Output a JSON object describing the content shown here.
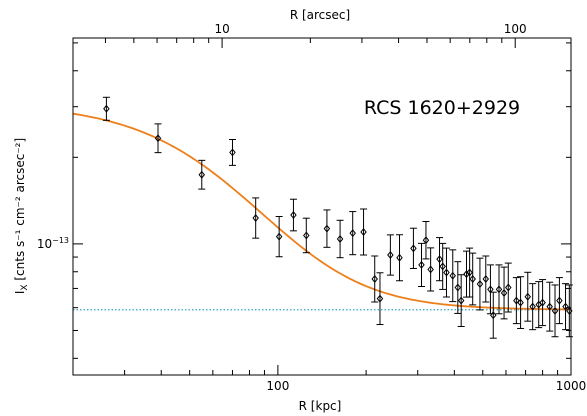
{
  "chart_data": {
    "type": "scatter",
    "annotation": "RCS 1620+2929",
    "xlabel": "R [kpc]",
    "x2label": "R [arcsec]",
    "ylabel_main": "I",
    "ylabel_sub": "X",
    "ylabel_rest": " [cnts s⁻¹ cm⁻² arcsec⁻²]",
    "x_scale": "log",
    "y_scale": "log",
    "xlim": [
      20,
      1000
    ],
    "ylim": [
      3.5e-14,
      5.2e-13
    ],
    "x2lim": [
      3.1,
      155
    ],
    "x_major_ticks": [
      100,
      1000
    ],
    "x_tick_labels": [
      "100",
      "1000"
    ],
    "x2_major_ticks": [
      10,
      100
    ],
    "x2_tick_labels": [
      "10",
      "100"
    ],
    "y_major_ticks": [
      1e-13
    ],
    "y_tick_label_base": "10",
    "y_tick_label_exp": "−13",
    "grid": false,
    "series": [
      {
        "kind": "points_with_errors",
        "x": [
          26,
          39,
          55,
          70,
          84,
          101,
          113,
          125,
          147,
          163,
          180,
          196,
          214,
          223,
          242,
          260,
          290,
          309,
          320,
          332,
          356,
          365,
          376,
          395,
          411,
          422,
          440,
          451,
          462,
          489,
          512,
          531,
          543,
          568,
          591,
          611,
          651,
          673,
          712,
          740,
          776,
          800,
          846,
          882,
          913,
          958,
          987
        ],
        "y": [
          2.95e-13,
          2.33e-13,
          1.74e-13,
          2.08e-13,
          1.23e-13,
          1.06e-13,
          1.26e-13,
          1.07e-13,
          1.13e-13,
          1.04e-13,
          1.09e-13,
          1.1e-13,
          7.55e-14,
          6.45e-14,
          9.15e-14,
          8.95e-14,
          9.65e-14,
          8.45e-14,
          1.03e-13,
          8.15e-14,
          8.85e-14,
          8.35e-14,
          7.95e-14,
          7.75e-14,
          7.05e-14,
          6.35e-14,
          7.85e-14,
          7.95e-14,
          7.55e-14,
          7.25e-14,
          7.55e-14,
          6.95e-14,
          5.65e-14,
          6.95e-14,
          6.75e-14,
          7.05e-14,
          6.35e-14,
          6.25e-14,
          6.55e-14,
          6.05e-14,
          6.15e-14,
          6.25e-14,
          6.05e-14,
          5.85e-14,
          6.35e-14,
          6.05e-14,
          5.85e-14
        ],
        "yerr": [
          0.04,
          0.05,
          0.05,
          0.045,
          0.07,
          0.07,
          0.055,
          0.06,
          0.065,
          0.065,
          0.075,
          0.08,
          0.08,
          0.09,
          0.07,
          0.08,
          0.07,
          0.075,
          0.065,
          0.075,
          0.075,
          0.08,
          0.085,
          0.09,
          0.09,
          0.09,
          0.08,
          0.085,
          0.09,
          0.09,
          0.08,
          0.085,
          0.08,
          0.085,
          0.09,
          0.085,
          0.08,
          0.09,
          0.085,
          0.08,
          0.08,
          0.08,
          0.085,
          0.09,
          0.08,
          0.08,
          0.09
        ],
        "color": "#000000"
      },
      {
        "kind": "beta_model_fit",
        "color": "#ee7f1a",
        "background": 5.9e-14,
        "amplitude": 2.5e-13,
        "core_radius_kpc": 70,
        "beta": 0.62
      },
      {
        "kind": "background_level",
        "y": 5.9e-14,
        "style": "dotted",
        "color": "#2fa6c6"
      }
    ]
  }
}
